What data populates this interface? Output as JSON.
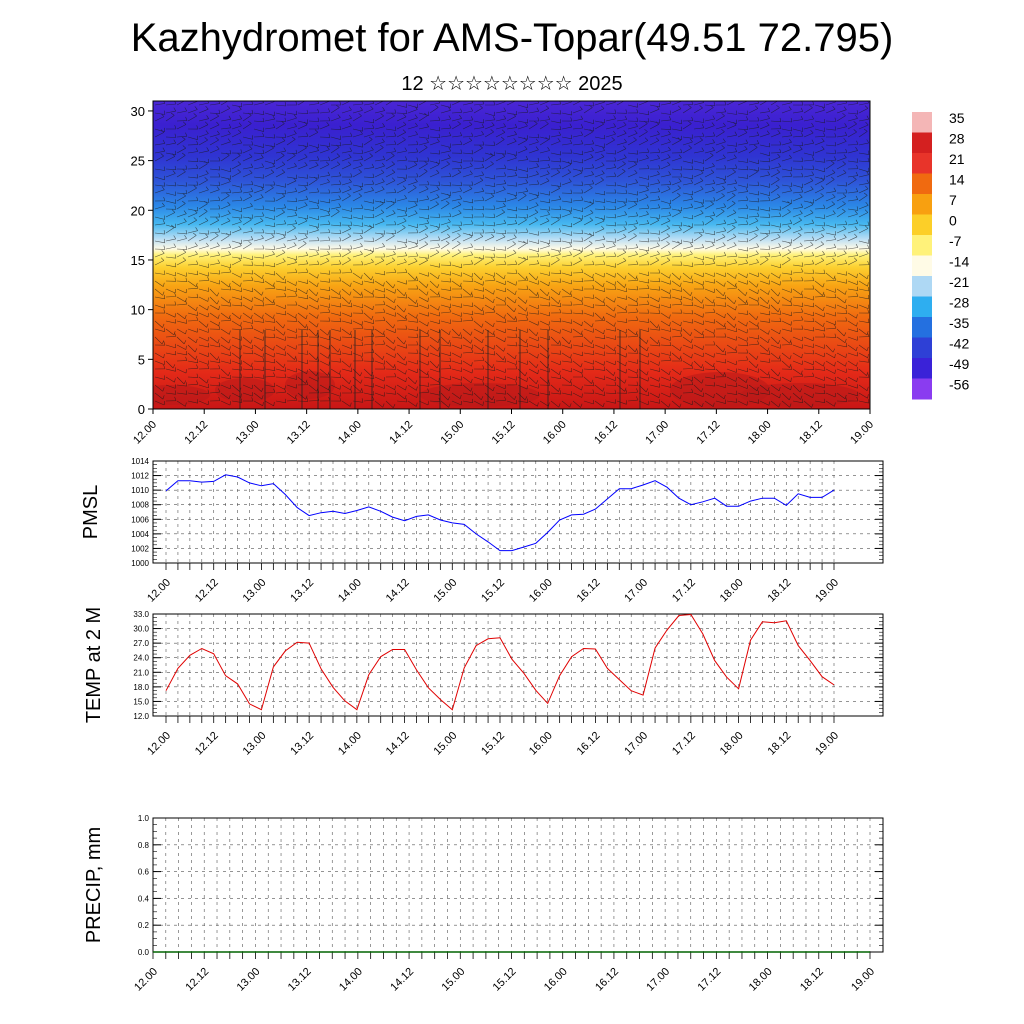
{
  "title": "Kazhydromet for AMS-Topar(49.51 72.795)",
  "subtitle": "12 ☆☆☆☆☆☆☆☆ 2025",
  "chart_data": [
    {
      "type": "heatmap",
      "title": "",
      "ylim": [
        0,
        31
      ],
      "yticks": [
        "0",
        "5",
        "10",
        "15",
        "20",
        "25",
        "30"
      ],
      "xticks": [
        "12.00",
        "12.12",
        "13.00",
        "13.12",
        "14.00",
        "14.12",
        "15.00",
        "15.12",
        "16.00",
        "16.12",
        "17.00",
        "17.12",
        "18.00",
        "18.12",
        "19.00"
      ],
      "colorbar_labels": [
        "35",
        "28",
        "21",
        "14",
        "7",
        "0",
        "-7",
        "-14",
        "-21",
        "-28",
        "-35",
        "-42",
        "-49",
        "-56"
      ],
      "colorbar_colors": [
        "#f4b6b6",
        "#d42020",
        "#e8342a",
        "#f06a10",
        "#f8a010",
        "#fccf28",
        "#fff27a",
        "#fffbe6",
        "#aed8f4",
        "#2eaef0",
        "#2470e0",
        "#2e40d6",
        "#3a22d8",
        "#8a3cf0"
      ]
    },
    {
      "type": "line",
      "ylabel": "PMSL",
      "ylim": [
        1000,
        1014
      ],
      "yticks": [
        "1000",
        "1002",
        "1004",
        "1006",
        "1008",
        "1010",
        "1012",
        "1014"
      ],
      "xticks": [
        "12.00",
        "12.12",
        "13.00",
        "13.12",
        "14.00",
        "14.12",
        "15.00",
        "15.12",
        "16.00",
        "16.12",
        "17.00",
        "17.12",
        "18.00",
        "18.12",
        "19.00"
      ],
      "color": "#0000ff",
      "values": [
        1009.9,
        1011.3,
        1011.3,
        1011.1,
        1011.2,
        1012.1,
        1011.8,
        1011.0,
        1010.6,
        1010.9,
        1009.4,
        1007.6,
        1006.5,
        1006.9,
        1007.1,
        1006.8,
        1007.2,
        1007.7,
        1007.1,
        1006.3,
        1005.8,
        1006.4,
        1006.6,
        1005.9,
        1005.5,
        1005.3,
        1004.0,
        1002.9,
        1001.7,
        1001.7,
        1002.2,
        1002.7,
        1004.2,
        1005.9,
        1006.6,
        1006.7,
        1007.4,
        1008.8,
        1010.2,
        1010.2,
        1010.7,
        1011.3,
        1010.4,
        1008.9,
        1008.0,
        1008.4,
        1008.9,
        1007.8,
        1007.8,
        1008.5,
        1008.9,
        1008.9,
        1007.9,
        1009.5,
        1009.0,
        1009.0,
        1010.0
      ]
    },
    {
      "type": "line",
      "ylabel": "TEMP at 2 M",
      "ylim": [
        12,
        33
      ],
      "yticks": [
        "12.0",
        "15.0",
        "18.0",
        "21.0",
        "24.0",
        "27.0",
        "30.0",
        "33.0"
      ],
      "xticks": [
        "12.00",
        "12.12",
        "13.00",
        "13.12",
        "14.00",
        "14.12",
        "15.00",
        "15.12",
        "16.00",
        "16.12",
        "17.00",
        "17.12",
        "18.00",
        "18.12",
        "19.00"
      ],
      "color": "#e00000",
      "values": [
        17.2,
        21.8,
        24.5,
        25.9,
        24.8,
        20.3,
        18.6,
        14.5,
        13.3,
        22.1,
        25.4,
        27.2,
        27.0,
        21.7,
        17.9,
        15.1,
        13.3,
        20.5,
        24.2,
        25.7,
        25.7,
        21.5,
        17.8,
        15.4,
        13.3,
        21.9,
        26.5,
        27.9,
        28.1,
        23.7,
        20.8,
        17.3,
        14.6,
        20.3,
        24.2,
        25.9,
        25.8,
        21.8,
        19.5,
        17.2,
        16.3,
        26.0,
        29.7,
        32.7,
        32.9,
        28.9,
        23.4,
        20.0,
        17.6,
        27.6,
        31.4,
        31.2,
        31.6,
        26.5,
        23.4,
        20.1,
        18.4
      ]
    },
    {
      "type": "line",
      "ylabel": "PRECIP, mm",
      "ylim": [
        0,
        1
      ],
      "yticks": [
        "0.0",
        "0.2",
        "0.4",
        "0.6",
        "0.8",
        "1.0"
      ],
      "xticks": [
        "12.00",
        "12.12",
        "13.00",
        "13.12",
        "14.00",
        "14.12",
        "15.00",
        "15.12",
        "16.00",
        "16.12",
        "17.00",
        "17.12",
        "18.00",
        "18.12",
        "19.00"
      ],
      "color": "#006400",
      "values": [
        0,
        0
      ]
    }
  ]
}
